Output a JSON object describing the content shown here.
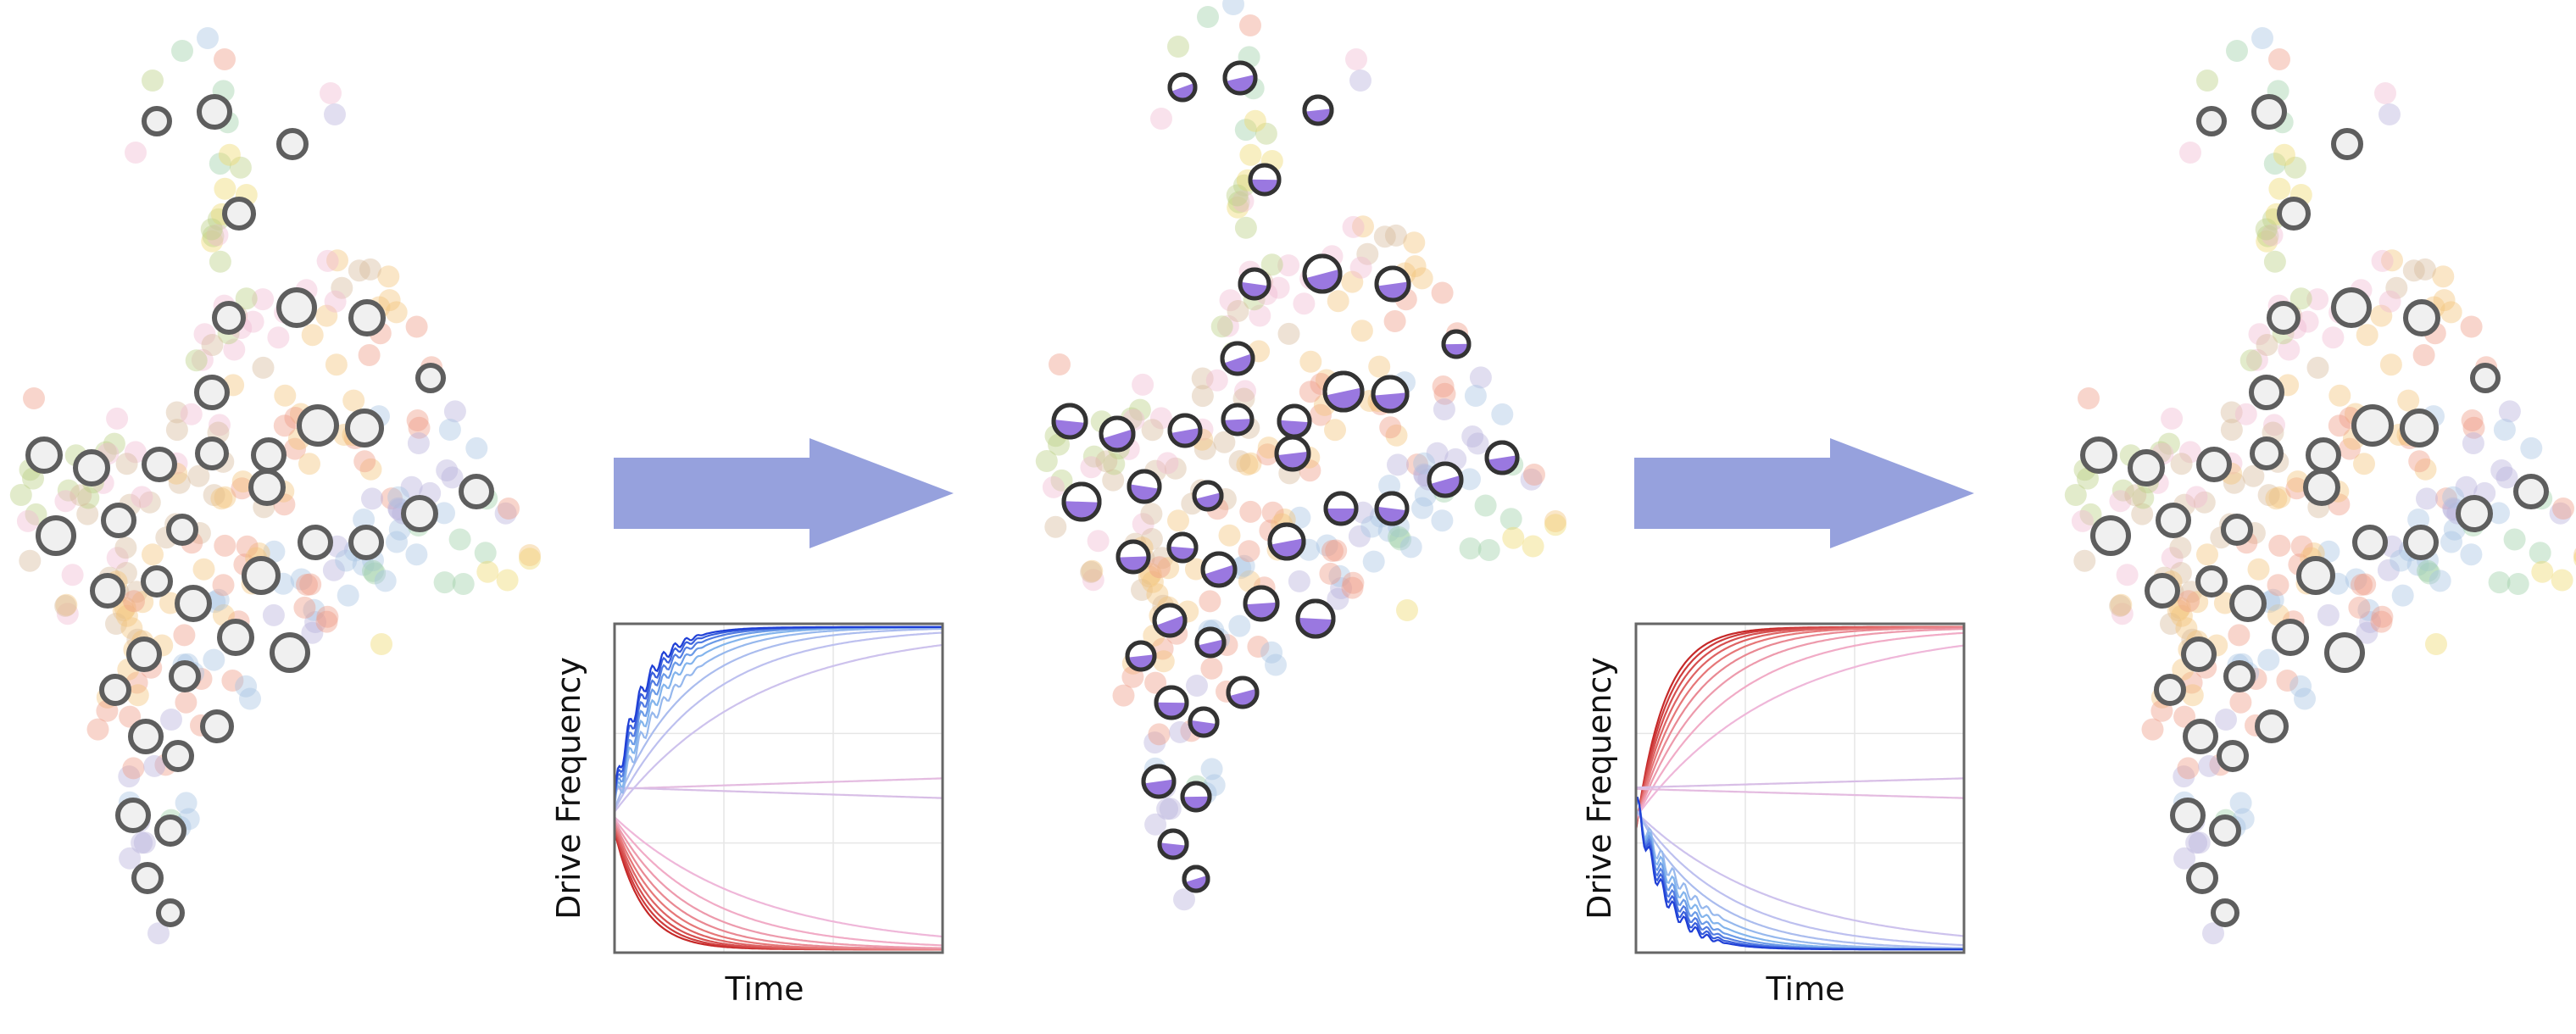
{
  "colors": {
    "arrow": "#96a1dd",
    "node_ring": "#5e5e5e",
    "node_fill_idle": "#f0f0f0",
    "node_fill_active": "#9a78e0",
    "plot_frame": "#666666",
    "background_dot_palette": [
      "#f3c47a",
      "#ee9a86",
      "#a7c3e3",
      "#b8b0db",
      "#9ed0a6",
      "#efd86d",
      "#b9cf82",
      "#f0b9d2",
      "#d7b99c"
    ]
  },
  "panels": {
    "left_map": {
      "state": "idle"
    },
    "middle_map": {
      "state": "activated"
    },
    "right_map": {
      "state": "idle"
    }
  },
  "plots": [
    {
      "xlabel": "Time",
      "ylabel": "Drive Frequency",
      "grid": true,
      "direction": "rising",
      "series_count": 20,
      "color_scale": [
        "#c62828",
        "#e57373",
        "#f3b6d6",
        "#c9c3f0",
        "#7fb3ec",
        "#1f3fd6"
      ]
    },
    {
      "xlabel": "Time",
      "ylabel": "Drive Frequency",
      "grid": true,
      "direction": "falling",
      "series_count": 20,
      "color_scale": [
        "#c62828",
        "#e57373",
        "#f3b6d6",
        "#c9c3f0",
        "#7fb3ec",
        "#1f3fd6"
      ]
    }
  ]
}
